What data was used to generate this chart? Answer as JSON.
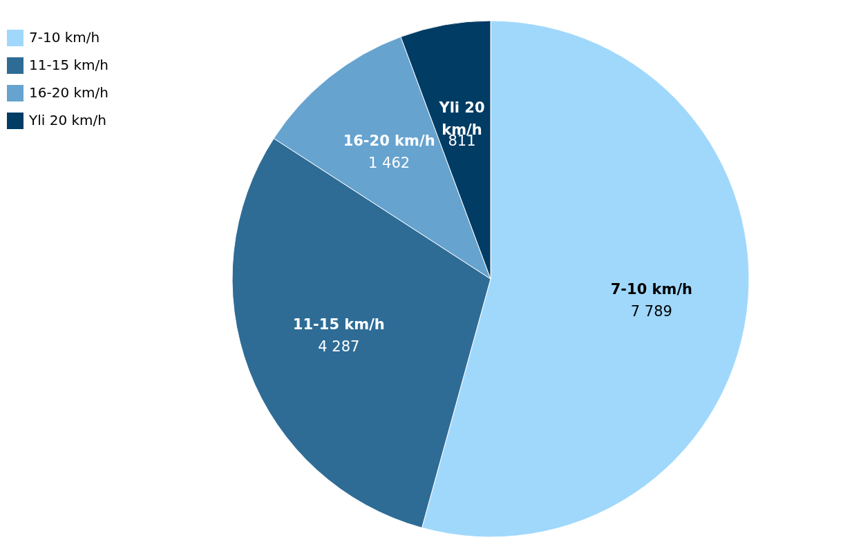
{
  "chart_data": {
    "type": "pie",
    "categories": [
      "7-10 km/h",
      "11-15 km/h",
      "16-20 km/h",
      "Yli 20 km/h"
    ],
    "values": [
      7789,
      4287,
      1462,
      811
    ],
    "value_labels": [
      "7 789",
      "4 287",
      "1 462",
      "811"
    ],
    "colors": [
      "#a0d8fc",
      "#2e6c96",
      "#66a3cf",
      "#003c64"
    ],
    "legend": "top left"
  }
}
